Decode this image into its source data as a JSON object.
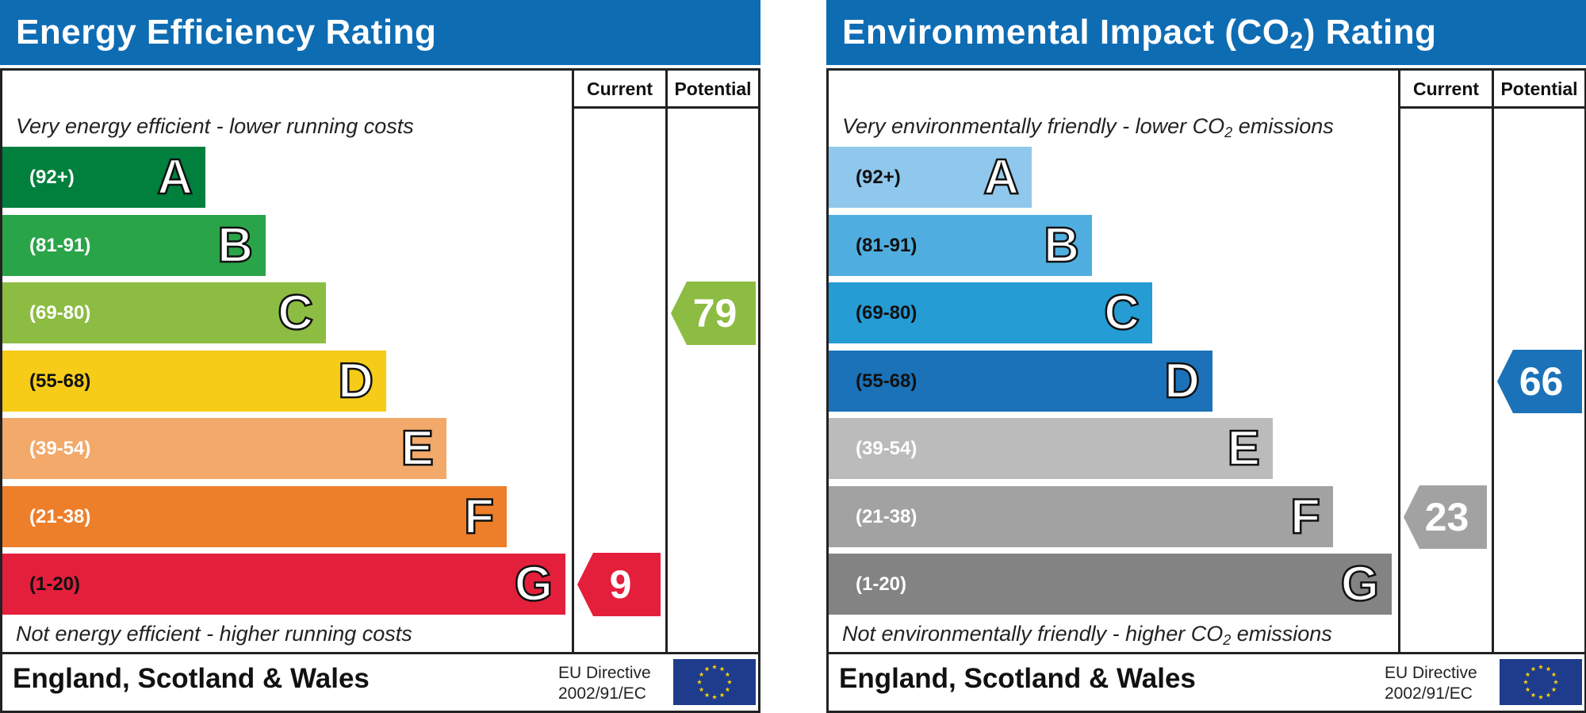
{
  "colors": {
    "header": "#0e6cb3",
    "ee_bands": [
      "#007f3d",
      "#2aa449",
      "#8cbc42",
      "#f6cc18",
      "#f2a96a",
      "#ee7f2a",
      "#e41f3c"
    ],
    "ei_bands": [
      "#8fc8ec",
      "#4faedf",
      "#259cd4",
      "#1b72b8",
      "#bbbbbb",
      "#a2a2a2",
      "#838383"
    ],
    "ee_current_marker": "#e41f3c",
    "ee_potential_marker": "#8cbc42",
    "ei_current_marker": "#a2a2a2",
    "ei_potential_marker": "#1b72b8",
    "eu_flag": "#1f3c8c",
    "eu_stars": "#ffd200"
  },
  "chart_data": [
    {
      "type": "bar",
      "title": "Energy Efficiency Rating",
      "columns": [
        "Current",
        "Potential"
      ],
      "top_caption": "Very energy efficient - lower running costs",
      "bottom_caption": "Not energy efficient - higher running costs",
      "categories": [
        "A",
        "B",
        "C",
        "D",
        "E",
        "F",
        "G"
      ],
      "ranges": [
        "(92+)",
        "(81-91)",
        "(69-80)",
        "(55-68)",
        "(39-54)",
        "(21-38)",
        "(1-20)"
      ],
      "current": {
        "value": "9",
        "band": "G"
      },
      "potential": {
        "value": "79",
        "band": "C"
      },
      "footer": {
        "region": "England, Scotland & Wales",
        "directive_line1": "EU Directive",
        "directive_line2": "2002/91/EC"
      }
    },
    {
      "type": "bar",
      "title_main": "Environmental Impact (CO",
      "title_sub": "2",
      "title_end": ") Rating",
      "columns": [
        "Current",
        "Potential"
      ],
      "top_caption_main": "Very environmentally friendly - lower CO",
      "top_caption_sub": "2",
      "top_caption_end": " emissions",
      "bottom_caption_main": "Not environmentally friendly - higher CO",
      "bottom_caption_sub": "2",
      "bottom_caption_end": " emissions",
      "categories": [
        "A",
        "B",
        "C",
        "D",
        "E",
        "F",
        "G"
      ],
      "ranges": [
        "(92+)",
        "(81-91)",
        "(69-80)",
        "(55-68)",
        "(39-54)",
        "(21-38)",
        "(1-20)"
      ],
      "current": {
        "value": "23",
        "band": "F"
      },
      "potential": {
        "value": "66",
        "band": "D"
      },
      "footer": {
        "region": "England, Scotland & Wales",
        "directive_line1": "EU Directive",
        "directive_line2": "2002/91/EC"
      }
    }
  ]
}
